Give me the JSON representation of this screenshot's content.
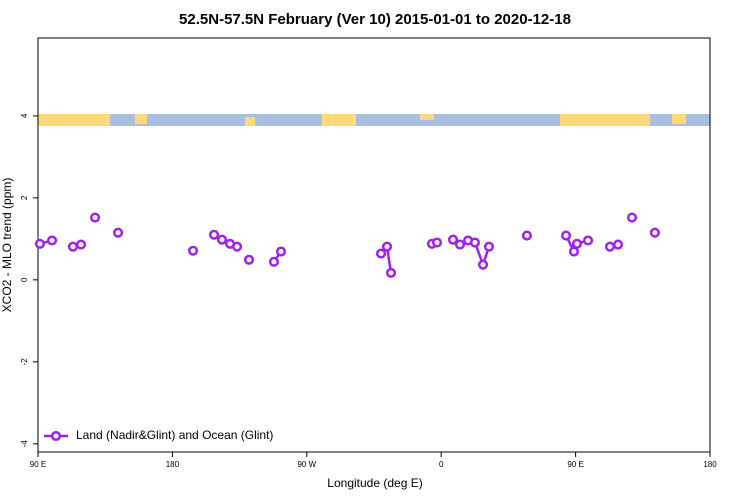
{
  "chart_data": {
    "type": "line",
    "title": "52.5N-57.5N February (Ver 10)   2015-01-01 to 2020-12-18",
    "x_label": "Longitude (deg E)",
    "y_label": "XCO2 - MLO trend (ppm)",
    "xlim": [
      90,
      540
    ],
    "xticks": [
      {
        "value": 90,
        "label": "90 E"
      },
      {
        "value": 180,
        "label": "180"
      },
      {
        "value": 270,
        "label": "90 W"
      },
      {
        "value": 360,
        "label": "0"
      },
      {
        "value": 450,
        "label": "90 E"
      },
      {
        "value": 540,
        "label": "180"
      }
    ],
    "ylim": [
      -4.2,
      5.9
    ],
    "yticks": [
      -4,
      -2,
      0,
      2,
      4
    ],
    "legend": "bottom-left",
    "x": [
      91.3,
      99.4,
      null,
      113.4,
      118.8,
      null,
      128.2,
      null,
      143.6,
      null,
      193.8,
      null,
      207.9,
      213.2,
      218.6,
      223.3,
      null,
      231.3,
      null,
      248.0,
      252.7,
      null,
      319.7,
      323.7,
      326.4,
      null,
      353.8,
      357.2,
      null,
      367.9,
      372.6,
      378.0,
      382.6,
      388.0,
      392.0,
      null,
      417.4,
      null,
      443.6,
      448.9,
      450.9,
      458.3,
      null,
      473.0,
      478.4,
      null,
      487.8,
      null,
      503.1
    ],
    "series": [
      {
        "name": "Land (Nadir&Glint) and Ocean (Glint)",
        "color": "#a020f0",
        "values": [
          0.88,
          0.96,
          null,
          0.81,
          0.86,
          null,
          1.52,
          null,
          1.15,
          null,
          0.71,
          null,
          1.1,
          0.98,
          0.88,
          0.81,
          null,
          0.49,
          null,
          0.44,
          0.69,
          null,
          0.64,
          0.81,
          0.17,
          null,
          0.88,
          0.91,
          null,
          0.98,
          0.86,
          0.96,
          0.91,
          0.37,
          0.81,
          null,
          1.08,
          null,
          1.08,
          0.69,
          0.88,
          0.96,
          null,
          0.81,
          0.86,
          null,
          1.52,
          null,
          1.15
        ]
      }
    ]
  }
}
